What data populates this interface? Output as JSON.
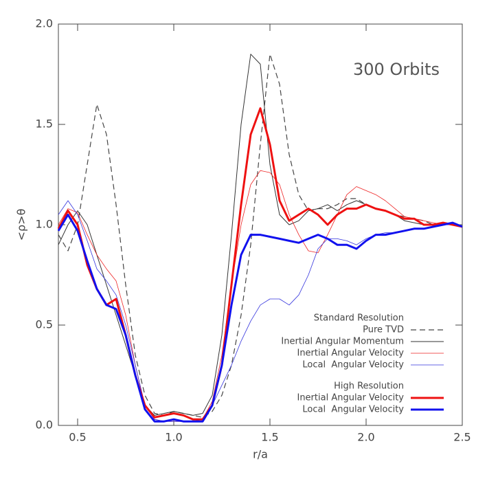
{
  "chart_data": {
    "type": "line",
    "annotation": "300 Orbits",
    "x_label": "r/a",
    "y_label": "<ρ>θ",
    "xlim": [
      0.4,
      2.5
    ],
    "ylim": [
      0,
      2
    ],
    "xticks": [
      0.5,
      {
        "value": 1,
        "label": "1.0"
      },
      1.5,
      {
        "value": 2,
        "label": "2.0"
      },
      2.5
    ],
    "yticks": [
      {
        "value": 0,
        "label": "0.0"
      },
      0.5,
      {
        "value": 1,
        "label": "1.0"
      },
      1.5,
      {
        "value": 2,
        "label": "2.0"
      }
    ],
    "x": [
      0.4,
      0.45,
      0.5,
      0.55,
      0.6,
      0.65,
      0.7,
      0.75,
      0.8,
      0.85,
      0.9,
      0.95,
      1.0,
      1.05,
      1.1,
      1.15,
      1.2,
      1.25,
      1.3,
      1.35,
      1.4,
      1.45,
      1.5,
      1.55,
      1.6,
      1.65,
      1.7,
      1.75,
      1.8,
      1.85,
      1.9,
      1.95,
      2.0,
      2.05,
      2.1,
      2.15,
      2.2,
      2.25,
      2.3,
      2.35,
      2.4,
      2.45,
      2.5
    ],
    "series_groups": [
      {
        "title": "Standard Resolution",
        "series": [
          {
            "name": "Pure TVD",
            "color": "#444444",
            "width": 1.2,
            "dash": true,
            "values": [
              0.95,
              0.87,
              1.0,
              1.3,
              1.6,
              1.45,
              1.1,
              0.7,
              0.35,
              0.15,
              0.06,
              0.05,
              0.07,
              0.06,
              0.05,
              0.04,
              0.07,
              0.15,
              0.3,
              0.55,
              0.9,
              1.4,
              1.85,
              1.7,
              1.35,
              1.15,
              1.07,
              1.08,
              1.08,
              1.1,
              1.13,
              1.13,
              1.1,
              1.08,
              1.07,
              1.05,
              1.04,
              1.03,
              1.02,
              1.0,
              1.0,
              1.01,
              0.99
            ]
          },
          {
            "name": "Inertial Angular Momentum",
            "color": "#333333",
            "width": 1,
            "dash": false,
            "values": [
              0.9,
              1.0,
              1.07,
              1.0,
              0.85,
              0.7,
              0.55,
              0.4,
              0.25,
              0.1,
              0.05,
              0.06,
              0.07,
              0.06,
              0.05,
              0.06,
              0.15,
              0.45,
              0.95,
              1.5,
              1.85,
              1.8,
              1.3,
              1.05,
              1.0,
              1.02,
              1.07,
              1.08,
              1.1,
              1.07,
              1.1,
              1.12,
              1.1,
              1.08,
              1.07,
              1.05,
              1.02,
              1.01,
              1.0,
              1.0,
              1.0,
              1.0,
              0.99
            ]
          },
          {
            "name": "Inertial Angular Velocity",
            "color": "#ee2222",
            "width": 0.8,
            "dash": false,
            "values": [
              1.0,
              1.08,
              1.06,
              0.95,
              0.85,
              0.78,
              0.72,
              0.55,
              0.3,
              0.1,
              0.03,
              0.02,
              0.02,
              0.02,
              0.02,
              0.03,
              0.12,
              0.35,
              0.7,
              1.0,
              1.2,
              1.27,
              1.26,
              1.2,
              1.05,
              0.95,
              0.87,
              0.86,
              0.95,
              1.05,
              1.15,
              1.19,
              1.17,
              1.15,
              1.12,
              1.08,
              1.04,
              1.03,
              1.02,
              1.01,
              1.0,
              1.0,
              0.99
            ]
          },
          {
            "name": "Local  Angular Velocity",
            "color": "#3333dd",
            "width": 0.8,
            "dash": false,
            "values": [
              1.05,
              1.12,
              1.05,
              0.92,
              0.78,
              0.72,
              0.65,
              0.5,
              0.3,
              0.1,
              0.03,
              0.02,
              0.02,
              0.02,
              0.02,
              0.03,
              0.1,
              0.2,
              0.3,
              0.42,
              0.52,
              0.6,
              0.63,
              0.63,
              0.6,
              0.65,
              0.75,
              0.88,
              0.93,
              0.93,
              0.92,
              0.9,
              0.93,
              0.95,
              0.96,
              0.96,
              0.97,
              0.98,
              0.98,
              0.99,
              1.0,
              1.0,
              0.99
            ]
          }
        ]
      },
      {
        "title": "High Resolution",
        "series": [
          {
            "name": "Inertial Angular Velocity",
            "color": "#ee1111",
            "width": 3,
            "dash": false,
            "values": [
              0.98,
              1.07,
              1.0,
              0.8,
              0.68,
              0.6,
              0.63,
              0.45,
              0.25,
              0.1,
              0.04,
              0.05,
              0.06,
              0.05,
              0.03,
              0.03,
              0.1,
              0.3,
              0.7,
              1.1,
              1.45,
              1.58,
              1.4,
              1.12,
              1.02,
              1.05,
              1.08,
              1.05,
              1.0,
              1.05,
              1.08,
              1.08,
              1.1,
              1.08,
              1.07,
              1.05,
              1.03,
              1.03,
              1.0,
              1.0,
              1.01,
              1.0,
              0.99
            ]
          },
          {
            "name": "Local  Angular Velocity",
            "color": "#1111ee",
            "width": 3,
            "dash": false,
            "values": [
              0.97,
              1.05,
              0.97,
              0.82,
              0.68,
              0.6,
              0.58,
              0.45,
              0.25,
              0.08,
              0.02,
              0.02,
              0.03,
              0.02,
              0.02,
              0.02,
              0.1,
              0.3,
              0.6,
              0.85,
              0.95,
              0.95,
              0.94,
              0.93,
              0.92,
              0.91,
              0.93,
              0.95,
              0.93,
              0.9,
              0.9,
              0.88,
              0.92,
              0.95,
              0.95,
              0.96,
              0.97,
              0.98,
              0.98,
              0.99,
              1.0,
              1.01,
              0.99
            ]
          }
        ]
      }
    ]
  }
}
